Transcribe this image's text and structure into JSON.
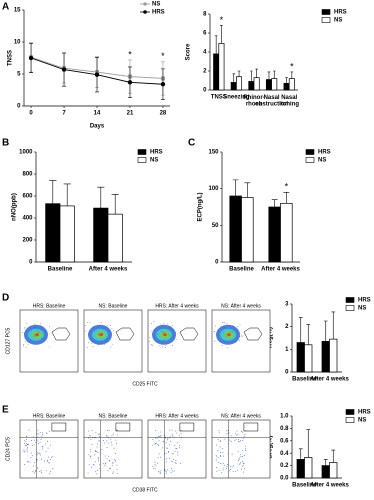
{
  "panels": {
    "letters": [
      "A",
      "B",
      "C",
      "D",
      "E"
    ]
  },
  "flow": [
    {
      "y_label": "CD127 PC5",
      "x_label": "CD25 FITC",
      "titles": [
        "HRS: Baseline",
        "NS: Baseline",
        "HRS: After 4 weeks",
        "NS: After 4 weeks"
      ]
    },
    {
      "y_label": "CD24 PC5",
      "x_label": "CD38 FITC",
      "titles": [
        "HRS: Baseline",
        "NS: Baseline",
        "HRS: After 4 weeks",
        "NS: After 4 weeks"
      ]
    }
  ],
  "chart_data": [
    {
      "type": "line",
      "y_label": "TNSS",
      "x_label": "Days",
      "x": [
        0,
        7,
        14,
        21,
        28
      ],
      "xlim": [
        -1.5,
        29.5
      ],
      "xticks": [
        0,
        7,
        14,
        21,
        28
      ],
      "ylim": [
        0,
        15
      ],
      "yticks": [
        0,
        5,
        10,
        15
      ],
      "series": [
        {
          "name": "NS",
          "color": "#999999",
          "marker": "square",
          "values": [
            7.6,
            5.9,
            5.3,
            4.6,
            4.3
          ],
          "errors": [
            2.3,
            2.3,
            2.4,
            2.6,
            2.6
          ]
        },
        {
          "name": "HRS",
          "color": "#000000",
          "marker": "circle",
          "values": [
            7.5,
            5.7,
            4.9,
            3.7,
            3.4
          ],
          "errors": [
            2.3,
            2.6,
            2.7,
            2.4,
            2.4
          ]
        }
      ],
      "annotations": [
        {
          "text": "*",
          "x": 21
        },
        {
          "text": "*",
          "x": 28
        }
      ]
    },
    {
      "type": "bar",
      "y_label": "Score",
      "categories": [
        "TNSS",
        "Sneezing",
        "Rhinor-\nrhoea",
        "Nasal\nobstruction",
        "Nasal\nitching"
      ],
      "ylim": [
        0,
        8
      ],
      "yticks": [
        0,
        2,
        4,
        6,
        8
      ],
      "series": [
        {
          "name": "HRS",
          "color": "#000000",
          "values": [
            3.8,
            0.8,
            0.9,
            1.1,
            0.7
          ],
          "errors": [
            1.9,
            0.9,
            1.1,
            0.8,
            0.6
          ]
        },
        {
          "name": "NS",
          "color": "#ffffff",
          "values": [
            4.9,
            1.4,
            1.3,
            1.2,
            1.2
          ],
          "errors": [
            1.9,
            0.6,
            0.9,
            0.8,
            0.7
          ]
        }
      ],
      "annotations": [
        {
          "text": "*",
          "category": "TNSS"
        },
        {
          "text": "*",
          "category": "Nasal\nitching"
        }
      ]
    },
    {
      "type": "bar",
      "y_label": "nNO(ppb)",
      "categories": [
        "Baseline",
        "After 4 weeks"
      ],
      "ylim": [
        0,
        1000
      ],
      "yticks": [
        0,
        200,
        400,
        600,
        800,
        1000
      ],
      "series": [
        {
          "name": "HRS",
          "color": "#000000",
          "values": [
            530,
            490
          ],
          "errors": [
            210,
            190
          ]
        },
        {
          "name": "NS",
          "color": "#ffffff",
          "values": [
            510,
            435
          ],
          "errors": [
            200,
            180
          ]
        }
      ]
    },
    {
      "type": "bar",
      "y_label": "ECP(ng/L)",
      "categories": [
        "Baseline",
        "After 4 weeks"
      ],
      "ylim": [
        0,
        150
      ],
      "yticks": [
        0,
        50,
        100,
        150
      ],
      "series": [
        {
          "name": "HRS",
          "color": "#000000",
          "values": [
            90,
            75
          ],
          "errors": [
            22,
            10
          ]
        },
        {
          "name": "NS",
          "color": "#ffffff",
          "values": [
            88,
            80
          ],
          "errors": [
            20,
            15
          ]
        }
      ],
      "annotations": [
        {
          "text": "*",
          "category": "After 4 weeks"
        }
      ]
    },
    {
      "type": "bar",
      "y_label": "Treg(%)",
      "categories": [
        "Baseline",
        "After 4 weeks"
      ],
      "ylim": [
        0,
        3
      ],
      "yticks": [
        0,
        1,
        2,
        3
      ],
      "series": [
        {
          "name": "HRS",
          "color": "#000000",
          "values": [
            1.3,
            1.35
          ],
          "errors": [
            1.1,
            0.9
          ]
        },
        {
          "name": "NS",
          "color": "#ffffff",
          "values": [
            1.2,
            1.45
          ],
          "errors": [
            0.9,
            1.2
          ]
        }
      ]
    },
    {
      "type": "bar",
      "y_label": "Breg(%)",
      "categories": [
        "Baseline",
        "After 4 weeks"
      ],
      "ylim": [
        0,
        1
      ],
      "yticks": [
        {
          "value": 0,
          "label": "0.0"
        },
        0.2,
        0.4,
        0.6,
        0.8,
        {
          "value": 1,
          "label": "1.0"
        }
      ],
      "series": [
        {
          "name": "HRS",
          "color": "#000000",
          "values": [
            0.3,
            0.2
          ],
          "errors": [
            0.17,
            0.1
          ]
        },
        {
          "name": "NS",
          "color": "#ffffff",
          "values": [
            0.33,
            0.25
          ],
          "errors": [
            0.45,
            0.2
          ]
        }
      ]
    }
  ]
}
